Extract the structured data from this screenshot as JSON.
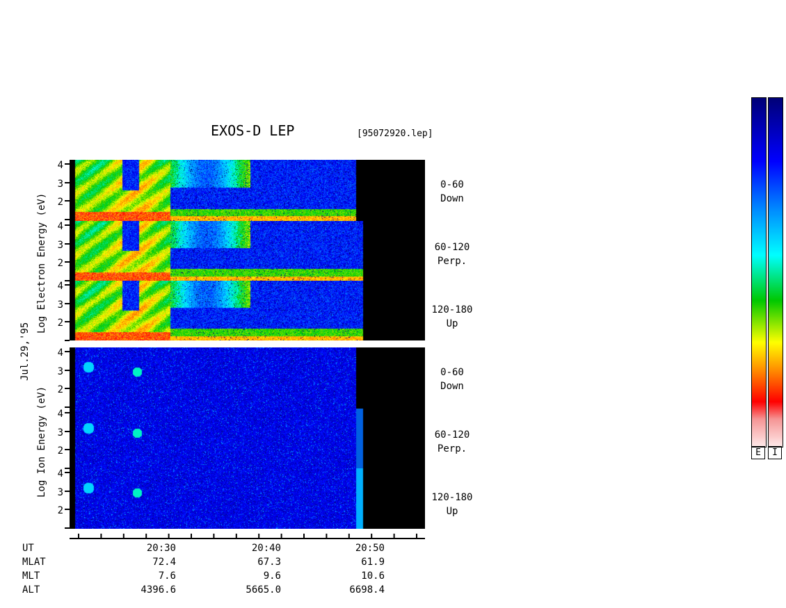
{
  "header": {
    "title": "EXOS-D LEP",
    "file": "[95072920.lep]"
  },
  "date_label": "Jul.29,'95",
  "electron_ylabel": "Log  Electron  Energy (eV)",
  "ion_ylabel": "Log  Ion  Energy (eV)",
  "panels": [
    {
      "species": "electron",
      "pitch": "0-60",
      "direction": "Down"
    },
    {
      "species": "electron",
      "pitch": "60-120",
      "direction": "Perp."
    },
    {
      "species": "electron",
      "pitch": "120-180",
      "direction": "Up"
    },
    {
      "species": "ion",
      "pitch": "0-60",
      "direction": "Down"
    },
    {
      "species": "ion",
      "pitch": "60-120",
      "direction": "Perp."
    },
    {
      "species": "ion",
      "pitch": "120-180",
      "direction": "Up"
    }
  ],
  "y_ticks": [
    "4",
    "3",
    "2"
  ],
  "ephemeris": {
    "row_labels": [
      "UT",
      "MLAT",
      "MLT",
      "ALT"
    ],
    "columns": [
      {
        "UT": "20:30",
        "MLAT": "72.4",
        "MLT": "7.6",
        "ALT": "4396.6"
      },
      {
        "UT": "20:40",
        "MLAT": "67.3",
        "MLT": "9.6",
        "ALT": "5665.0"
      },
      {
        "UT": "20:50",
        "MLAT": "61.9",
        "MLT": "10.6",
        "ALT": "6698.4"
      }
    ]
  },
  "colorbars": [
    {
      "label": "E"
    },
    {
      "label": "I"
    }
  ],
  "chart_data": {
    "type": "heatmap",
    "title": "EXOS-D LEP",
    "xlabel": "UT",
    "ylabel": "Log Energy (eV)",
    "y_ticks": [
      4,
      3,
      2
    ],
    "x_ticks": [
      "20:30",
      "20:40",
      "20:50"
    ],
    "colormap": [
      "#ffffff",
      "#f4a0a0",
      "#ff0000",
      "#ff8000",
      "#ffff00",
      "#00c000",
      "#00ffff",
      "#0080ff",
      "#0000ff",
      "#000080"
    ]
  }
}
